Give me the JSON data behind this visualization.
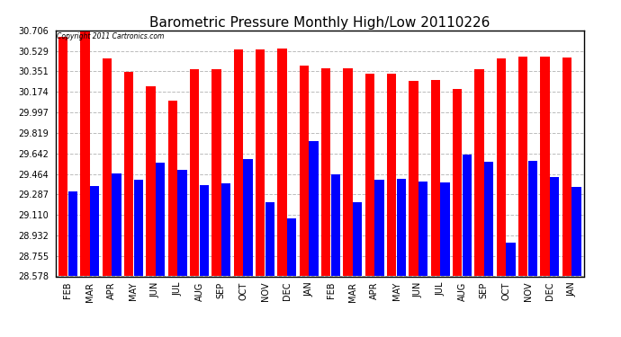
{
  "title": "Barometric Pressure Monthly High/Low 20110226",
  "copyright": "Copyright 2011 Cartronics.com",
  "months": [
    "FEB",
    "MAR",
    "APR",
    "MAY",
    "JUN",
    "JUL",
    "AUG",
    "SEP",
    "OCT",
    "NOV",
    "DEC",
    "JAN",
    "FEB",
    "MAR",
    "APR",
    "MAY",
    "JUN",
    "JUL",
    "AUG",
    "SEP",
    "OCT",
    "NOV",
    "DEC",
    "JAN"
  ],
  "highs": [
    30.65,
    30.71,
    30.46,
    30.35,
    30.22,
    30.1,
    30.37,
    30.37,
    30.54,
    30.54,
    30.55,
    30.4,
    30.38,
    30.38,
    30.33,
    30.33,
    30.27,
    30.28,
    30.2,
    30.37,
    30.46,
    30.48,
    30.48,
    30.47
  ],
  "lows": [
    29.31,
    29.36,
    29.47,
    29.41,
    29.56,
    29.5,
    29.37,
    29.38,
    29.59,
    29.22,
    29.08,
    29.75,
    29.46,
    29.22,
    29.41,
    29.42,
    29.4,
    29.39,
    29.63,
    29.57,
    28.87,
    29.58,
    29.44,
    29.35
  ],
  "high_color": "#ff0000",
  "low_color": "#0000ff",
  "bg_color": "#ffffff",
  "plot_bg_color": "#ffffff",
  "yticks": [
    28.578,
    28.755,
    28.932,
    29.11,
    29.287,
    29.464,
    29.642,
    29.819,
    29.997,
    30.174,
    30.351,
    30.529,
    30.706
  ],
  "ymin": 28.578,
  "ymax": 30.706,
  "bar_width": 0.42,
  "title_fontsize": 11,
  "tick_fontsize": 7,
  "grid_color": "#bbbbbb",
  "border_color": "#000000"
}
